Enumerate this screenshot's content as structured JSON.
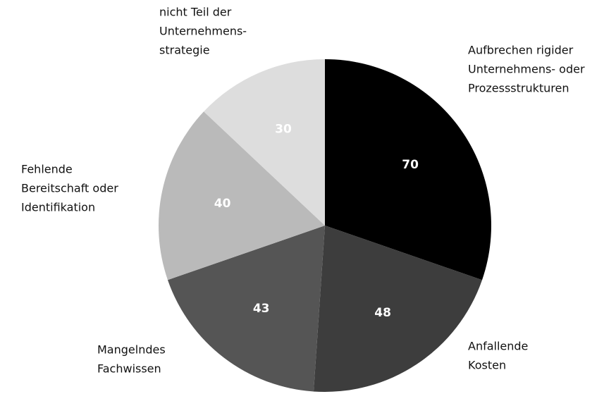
{
  "chart_data": {
    "type": "pie",
    "categories": [
      [
        "Aufbrechen rigider",
        "Unternehmens- oder",
        "Prozessstrukturen"
      ],
      [
        "Anfallende",
        "Kosten"
      ],
      [
        "Mangelndes",
        "Fachwissen"
      ],
      [
        "Fehlende",
        "Bereitschaft oder",
        "Identifikation"
      ],
      [
        "nicht Teil der",
        "Unternehmens-",
        "strategie"
      ]
    ],
    "values": [
      70,
      48,
      43,
      40,
      30
    ],
    "colors": [
      "#000000",
      "#3d3d3d",
      "#555555",
      "#bababa",
      "#dddddd"
    ]
  }
}
